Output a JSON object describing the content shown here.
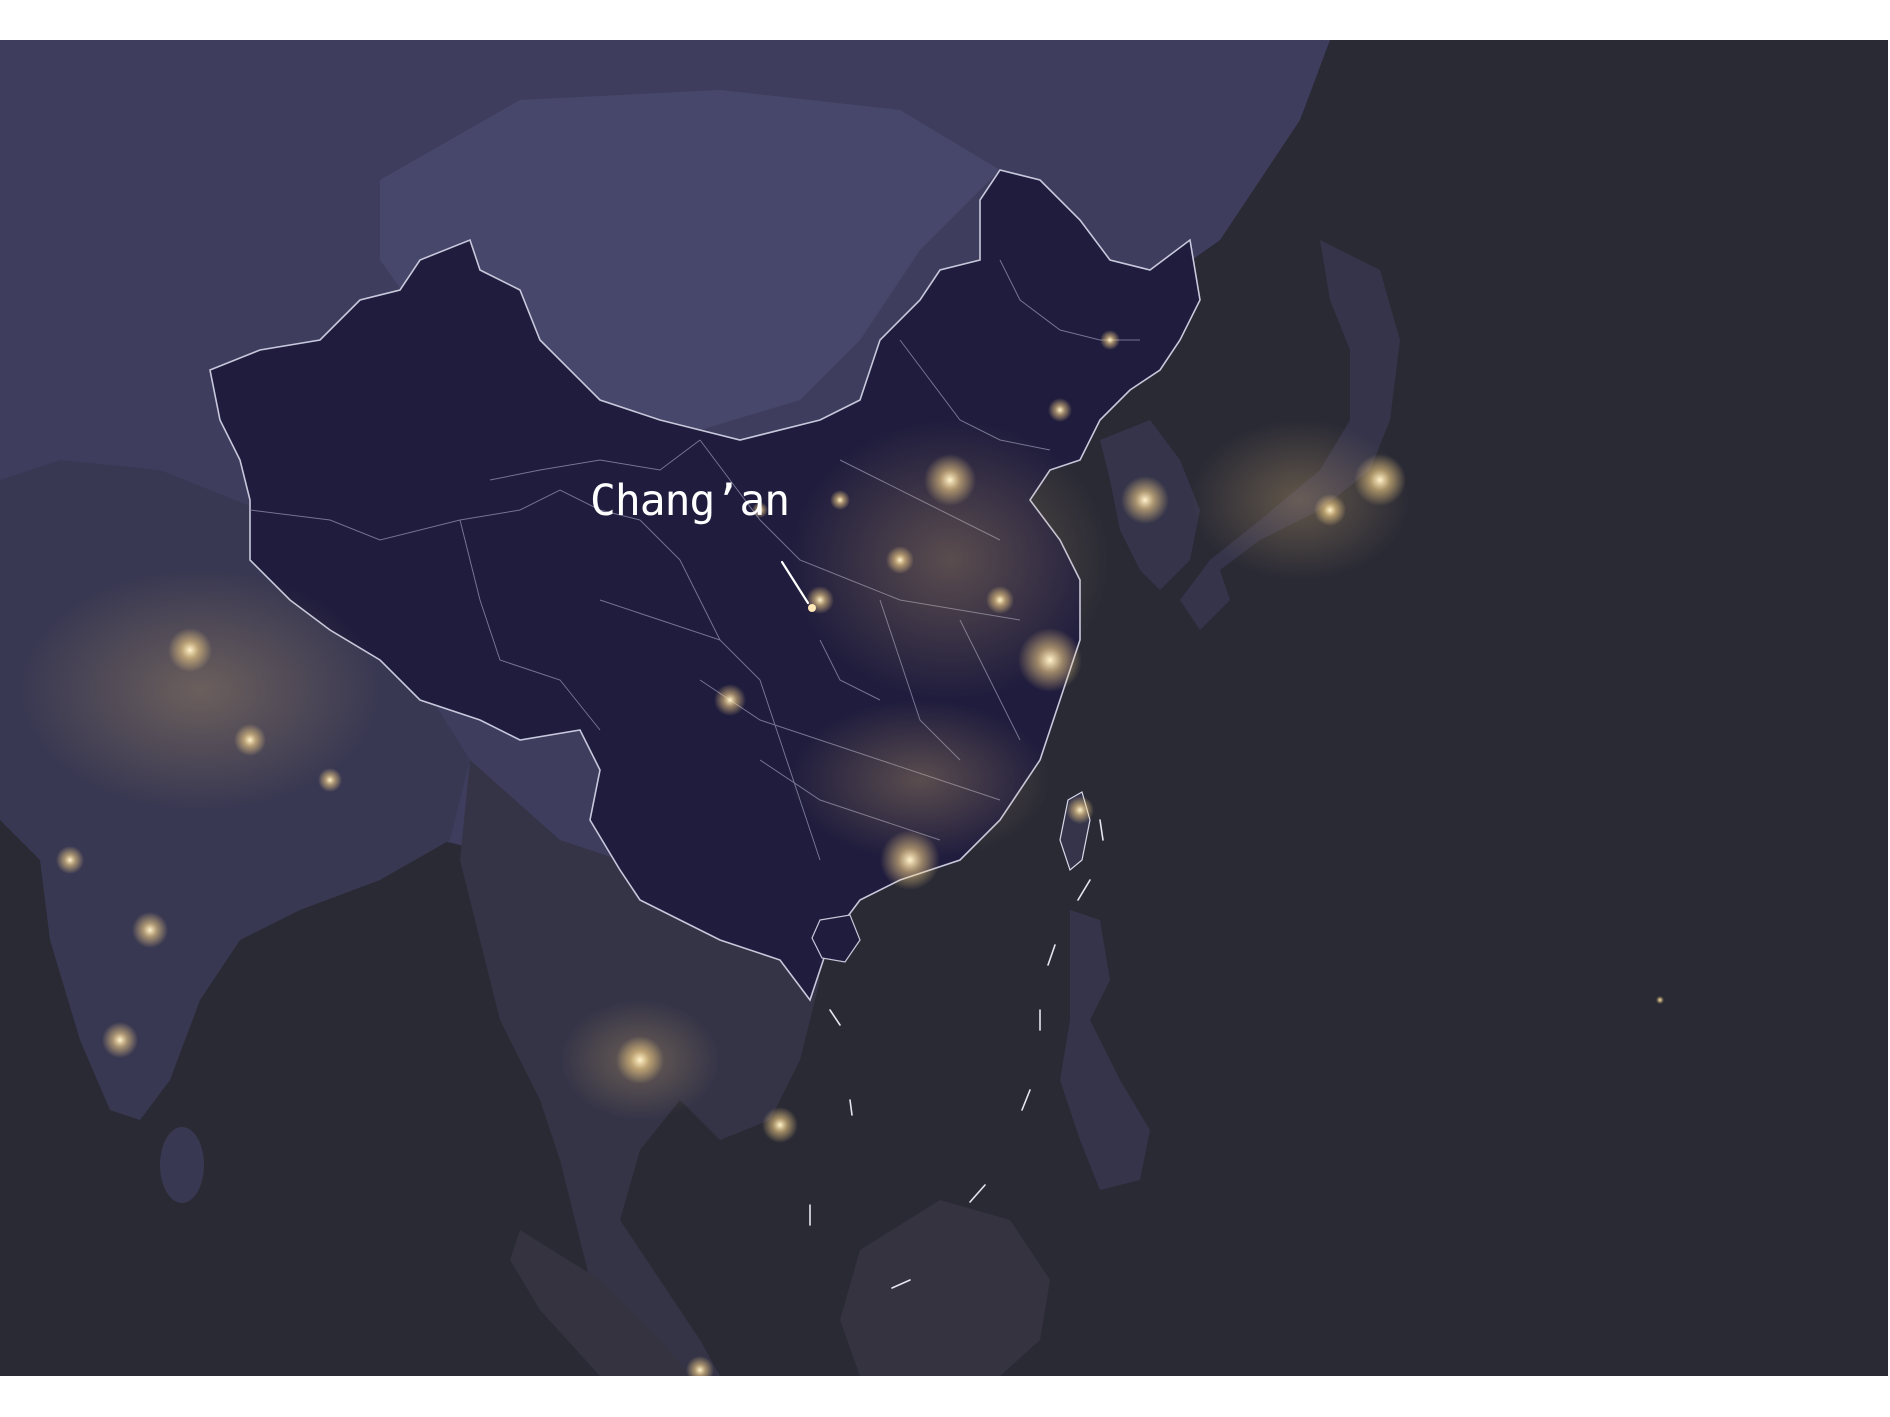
{
  "map": {
    "label": "Chang’an",
    "colors": {
      "ocean": "#2a2a35",
      "land": "#3b3b55",
      "steppe": "#4a4a6e",
      "china": "#1f1c3d",
      "lights": "#ffe4a6",
      "border": "#c8c8dc"
    }
  }
}
